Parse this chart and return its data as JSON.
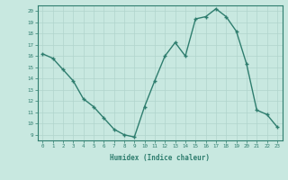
{
  "x": [
    0,
    1,
    2,
    3,
    4,
    5,
    6,
    7,
    8,
    9,
    10,
    11,
    12,
    13,
    14,
    15,
    16,
    17,
    18,
    19,
    20,
    21,
    22,
    23
  ],
  "y": [
    16.2,
    15.8,
    14.8,
    13.8,
    12.2,
    11.5,
    10.5,
    9.5,
    9.0,
    8.8,
    11.5,
    13.8,
    16.0,
    17.2,
    16.0,
    19.3,
    19.5,
    20.2,
    19.5,
    18.2,
    15.3,
    11.2,
    10.8,
    9.7
  ],
  "xlim": [
    -0.5,
    23.5
  ],
  "ylim": [
    8.5,
    20.5
  ],
  "yticks": [
    9,
    10,
    11,
    12,
    13,
    14,
    15,
    16,
    17,
    18,
    19,
    20
  ],
  "xticks": [
    0,
    1,
    2,
    3,
    4,
    5,
    6,
    7,
    8,
    9,
    10,
    11,
    12,
    13,
    14,
    15,
    16,
    17,
    18,
    19,
    20,
    21,
    22,
    23
  ],
  "xlabel": "Humidex (Indice chaleur)",
  "line_color": "#2e7d6e",
  "marker_color": "#2e7d6e",
  "bg_color": "#c8e8e0",
  "grid_color": "#b0d4cc"
}
